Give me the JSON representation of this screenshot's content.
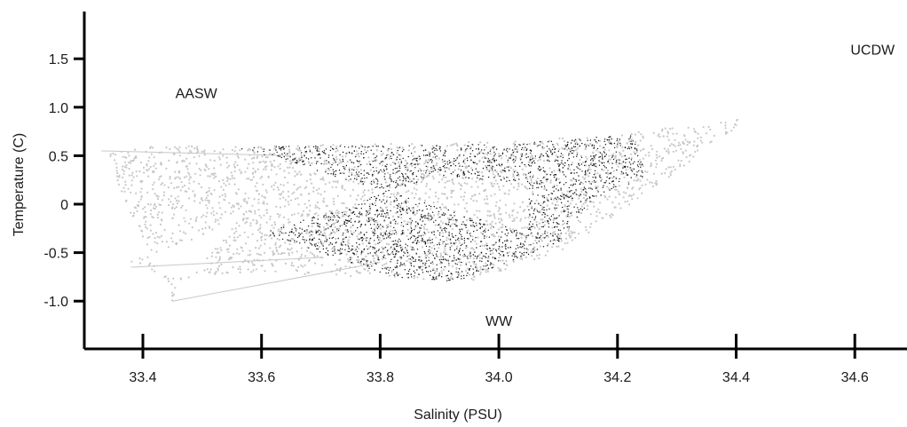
{
  "chart_data": {
    "type": "scatter",
    "title": "",
    "xlabel": "Salinity (PSU)",
    "ylabel": "Temperature (C)",
    "xlim": [
      33.3,
      34.7
    ],
    "ylim": [
      -1.5,
      2.0
    ],
    "x_ticks": [
      33.4,
      33.6,
      33.8,
      34.0,
      34.2,
      34.4,
      34.6
    ],
    "x_tick_labels": [
      "33.4",
      "33.6",
      "33.8",
      "34.0",
      "34.2",
      "34.4",
      "34.6"
    ],
    "y_ticks": [
      1.5,
      1.0,
      0.5,
      0,
      -0.5,
      -1.0
    ],
    "y_tick_labels": [
      "1.5",
      "1.0",
      "0.5",
      "0",
      "-0.5",
      "-1.0"
    ],
    "grid": false,
    "annotations": [
      {
        "text": "AASW",
        "x": 33.49,
        "y": 1.15
      },
      {
        "text": "UCDW",
        "x": 34.63,
        "y": 1.6
      },
      {
        "text": "WW",
        "x": 34.0,
        "y": -1.2
      }
    ],
    "series": [
      {
        "color": "#c8c8c8",
        "description_points": [
          {
            "x": 33.33,
            "y": 0.55
          },
          {
            "x": 33.4,
            "y": 0.6
          },
          {
            "x": 33.6,
            "y": 0.6
          },
          {
            "x": 33.8,
            "y": 0.62
          },
          {
            "x": 34.0,
            "y": 0.65
          },
          {
            "x": 34.2,
            "y": 0.72
          },
          {
            "x": 34.43,
            "y": 0.9
          },
          {
            "x": 34.35,
            "y": 0.6
          },
          {
            "x": 34.3,
            "y": 0.3
          },
          {
            "x": 34.2,
            "y": -0.1
          },
          {
            "x": 34.1,
            "y": -0.5
          },
          {
            "x": 33.95,
            "y": -0.8
          },
          {
            "x": 33.6,
            "y": -0.7
          },
          {
            "x": 33.45,
            "y": -0.75
          },
          {
            "x": 33.37,
            "y": -0.6
          },
          {
            "x": 33.5,
            "y": -0.35
          },
          {
            "x": 33.58,
            "y": 0.0
          },
          {
            "x": 33.45,
            "y": -1.0
          }
        ]
      },
      {
        "color": "#111111",
        "description_points": [
          {
            "x": 33.55,
            "y": 0.6
          },
          {
            "x": 33.8,
            "y": 0.6
          },
          {
            "x": 34.0,
            "y": 0.62
          },
          {
            "x": 34.23,
            "y": 0.72
          },
          {
            "x": 34.25,
            "y": 0.3
          },
          {
            "x": 34.15,
            "y": 0.0
          },
          {
            "x": 34.1,
            "y": -0.4
          },
          {
            "x": 33.93,
            "y": -0.8
          },
          {
            "x": 33.82,
            "y": -0.75
          },
          {
            "x": 33.7,
            "y": -0.5
          },
          {
            "x": 33.6,
            "y": -0.3
          },
          {
            "x": 33.75,
            "y": 0.0
          },
          {
            "x": 33.9,
            "y": 0.3
          },
          {
            "x": 34.05,
            "y": 0.2
          },
          {
            "x": 34.05,
            "y": -0.3
          }
        ]
      }
    ]
  }
}
